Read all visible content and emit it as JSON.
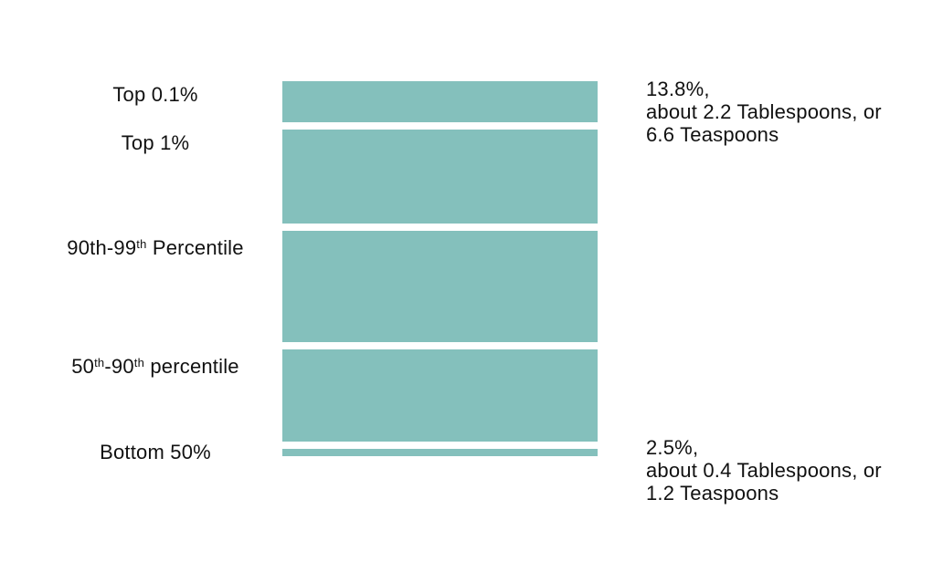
{
  "chart_data": {
    "type": "bar",
    "orientation": "horizontal-rows-height-encoded",
    "title": "",
    "categories": [
      "Top 0.1%",
      "Top 1%",
      "90th-99th Percentile",
      "50th-90th percentile",
      "Bottom 50%"
    ],
    "values": [
      13.8,
      31.6,
      37.4,
      31.0,
      2.5
    ],
    "unit": "percent of total",
    "bar_color": "#84c0bc",
    "text_color": "#111111",
    "background_color": "#ffffff",
    "grid": false,
    "legend": false,
    "annotations": [
      {
        "category": "Top 0.1%",
        "text": "13.8%, about 2.2 Tablespoons, or 6.6 Teaspoons"
      },
      {
        "category": "Bottom 50%",
        "text": "2.5%, about 0.4 Tablespoons, or 1.2 Teaspoons"
      }
    ]
  },
  "rows": [
    {
      "id": "top-0-1-percent",
      "value_percent": 13.8,
      "label_segments": [
        {
          "text": "Top 0.1%",
          "sup": false
        }
      ],
      "annotation": {
        "lines": [
          "13.8%,",
          "about 2.2 Tablespoons, or",
          "6.6 Teaspoons"
        ]
      }
    },
    {
      "id": "top-1-percent",
      "value_percent": 31.6,
      "label_segments": [
        {
          "text": "Top 1%",
          "sup": false
        }
      ],
      "annotation": null
    },
    {
      "id": "90th-99th-percentile",
      "value_percent": 37.4,
      "label_segments": [
        {
          "text": "90th-99",
          "sup": false
        },
        {
          "text": "th",
          "sup": true
        },
        {
          "text": " Percentile",
          "sup": false
        }
      ],
      "annotation": null
    },
    {
      "id": "50th-90th-percentile",
      "value_percent": 31.0,
      "label_segments": [
        {
          "text": "50",
          "sup": false
        },
        {
          "text": "th",
          "sup": true
        },
        {
          "text": "-90",
          "sup": false
        },
        {
          "text": "th",
          "sup": true
        },
        {
          "text": " percentile",
          "sup": false
        }
      ],
      "annotation": null
    },
    {
      "id": "bottom-50-percent",
      "value_percent": 2.5,
      "label_segments": [
        {
          "text": "Bottom 50%",
          "sup": false
        }
      ],
      "annotation": {
        "lines": [
          "2.5%,",
          "about 0.4 Tablespoons, or",
          "1.2 Teaspoons"
        ]
      }
    }
  ]
}
